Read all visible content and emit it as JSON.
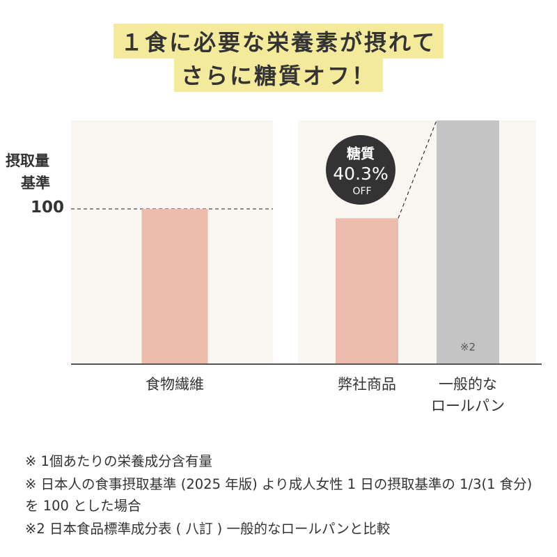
{
  "chart_data": {
    "type": "bar",
    "title": [
      "１食に必要な栄養素が摂れて",
      "さらに糖質オフ！"
    ],
    "ylabel": [
      "摂取量",
      "基準"
    ],
    "categories": [
      "食物繊維",
      "弊社商品",
      "一般的な\nロールパン"
    ],
    "values": [
      100,
      94,
      157
    ],
    "colors": [
      "#ecbcac",
      "#ecbcac",
      "#c4c4c4"
    ],
    "ylim": [
      0,
      157
    ],
    "yticks": [
      100
    ],
    "annotations": {
      "badge_label": "糖質",
      "badge_value": "40.3%",
      "badge_suffix": "OFF",
      "bar_note": "※2"
    },
    "footnotes": [
      "※ 1個あたりの栄養成分含有量",
      "※ 日本人の食事摂取基準 (2025 年版) より成人女性 1 日の摂取基準の 1/3(1 食分) を 100 とした場合",
      "※2 日本食品標準成分表 ( 八訂 ) 一般的なロールパンと比較"
    ]
  }
}
